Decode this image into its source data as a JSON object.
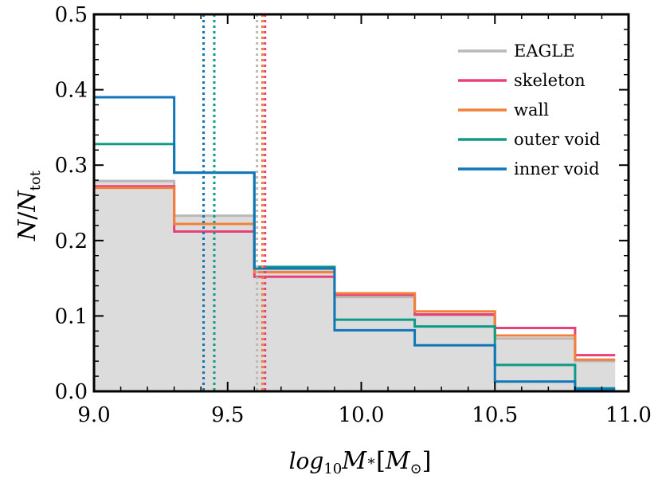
{
  "chart_data": {
    "type": "histogram",
    "xlabel": "log10M*[M⊙]",
    "ylabel": "N/Ntot",
    "xlim": [
      9.0,
      11.0
    ],
    "ylim": [
      0.0,
      0.5
    ],
    "x_ticks": [
      "9.0",
      "9.5",
      "10.0",
      "10.5",
      "11.0"
    ],
    "y_ticks": [
      "0.0",
      "0.1",
      "0.2",
      "0.3",
      "0.4",
      "0.5"
    ],
    "bin_edges": [
      9.0,
      9.3,
      9.6,
      9.9,
      10.2,
      10.5,
      10.8,
      10.95
    ],
    "grid": false,
    "legend_position": "top-right",
    "series": [
      {
        "name": "EAGLE",
        "color": "#b9b9b9",
        "filled": true,
        "fill_color": "#dcdcdc",
        "values": [
          0.279,
          0.233,
          0.162,
          0.125,
          0.101,
          0.07,
          0.04
        ],
        "median": 9.61
      },
      {
        "name": "skeleton",
        "color": "#e8407a",
        "values": [
          0.272,
          0.212,
          0.152,
          0.128,
          0.102,
          0.084,
          0.048
        ],
        "median": 9.64
      },
      {
        "name": "wall",
        "color": "#f0803a",
        "values": [
          0.27,
          0.222,
          0.158,
          0.13,
          0.106,
          0.074,
          0.042
        ],
        "median": 9.63
      },
      {
        "name": "outer void",
        "color": "#0e9a85",
        "values": [
          0.328,
          0.29,
          0.165,
          0.095,
          0.086,
          0.035,
          0.004
        ],
        "median": 9.45
      },
      {
        "name": "inner void",
        "color": "#1176b8",
        "values": [
          0.39,
          0.29,
          0.163,
          0.081,
          0.061,
          0.013,
          0.003
        ],
        "median": 9.41
      }
    ]
  }
}
